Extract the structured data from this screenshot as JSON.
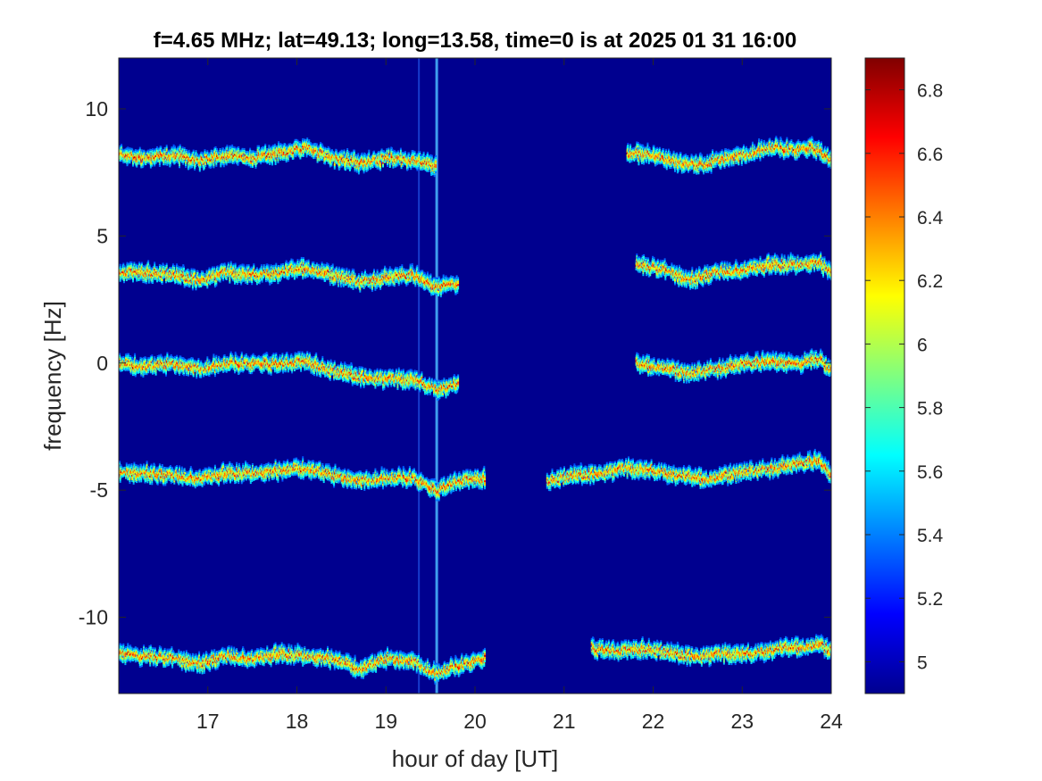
{
  "chart_data": {
    "type": "heatmap",
    "title": "f=4.65 MHz;  lat=49.13; long=13.58, time=0 is at 2025 01 31 16:00",
    "xlabel": "hour of day [UT]",
    "ylabel": "frequency [Hz]",
    "xlim": [
      16,
      24
    ],
    "ylim": [
      -13,
      12
    ],
    "x_ticks": [
      17,
      18,
      19,
      20,
      21,
      22,
      23,
      24
    ],
    "y_ticks": [
      -10,
      -5,
      0,
      5,
      10
    ],
    "grid": false,
    "colormap": "jet",
    "background_color": "#00008f",
    "colorbar": {
      "location": "right",
      "range": [
        4.9,
        6.9
      ],
      "ticks": [
        5,
        5.2,
        5.4,
        5.6,
        5.8,
        6,
        6.2,
        6.4,
        6.6,
        6.8
      ]
    },
    "traces": [
      {
        "x": [
          16.0,
          16.3,
          16.6,
          16.9,
          17.2,
          17.5,
          17.8,
          18.1,
          18.4,
          18.7,
          19.0,
          19.3,
          19.55
        ],
        "y": [
          8.2,
          8.1,
          8.2,
          8.0,
          8.2,
          8.1,
          8.3,
          8.5,
          8.1,
          7.9,
          8.1,
          8.0,
          7.8
        ]
      },
      {
        "x": [
          21.7,
          22.0,
          22.3,
          22.5,
          22.8,
          23.0,
          23.3,
          23.6,
          23.8,
          24.0
        ],
        "y": [
          8.3,
          8.2,
          7.9,
          7.8,
          8.1,
          8.2,
          8.5,
          8.4,
          8.5,
          8.0
        ]
      },
      {
        "x": [
          16.0,
          16.3,
          16.6,
          16.9,
          17.2,
          17.5,
          17.8,
          18.1,
          18.4,
          18.7,
          19.0,
          19.3,
          19.55,
          19.8
        ],
        "y": [
          3.6,
          3.6,
          3.5,
          3.3,
          3.6,
          3.5,
          3.6,
          3.8,
          3.5,
          3.2,
          3.4,
          3.5,
          3.0,
          3.2
        ]
      },
      {
        "x": [
          21.8,
          22.1,
          22.4,
          22.7,
          23.0,
          23.3,
          23.6,
          23.85,
          24.0
        ],
        "y": [
          3.9,
          3.7,
          3.3,
          3.6,
          3.7,
          3.9,
          3.9,
          4.0,
          3.6
        ]
      },
      {
        "x": [
          16.0,
          16.3,
          16.6,
          16.9,
          17.2,
          17.5,
          17.8,
          18.1,
          18.4,
          18.7,
          19.0,
          19.3,
          19.55,
          19.8
        ],
        "y": [
          0.0,
          -0.1,
          0.0,
          -0.2,
          0.0,
          0.0,
          0.0,
          0.1,
          -0.3,
          -0.5,
          -0.6,
          -0.6,
          -1.0,
          -0.8
        ]
      },
      {
        "x": [
          21.8,
          22.1,
          22.4,
          22.7,
          23.0,
          23.3,
          23.6,
          23.85,
          24.0
        ],
        "y": [
          0.0,
          -0.1,
          -0.4,
          -0.2,
          0.0,
          0.1,
          0.0,
          0.2,
          -0.3
        ]
      },
      {
        "x": [
          16.0,
          16.3,
          16.6,
          16.9,
          17.2,
          17.5,
          17.8,
          18.1,
          18.4,
          18.7,
          19.0,
          19.3,
          19.55,
          19.8,
          20.1
        ],
        "y": [
          -4.3,
          -4.3,
          -4.4,
          -4.5,
          -4.3,
          -4.3,
          -4.2,
          -4.1,
          -4.4,
          -4.6,
          -4.5,
          -4.5,
          -5.0,
          -4.6,
          -4.5
        ]
      },
      {
        "x": [
          20.8,
          21.1,
          21.4,
          21.7,
          22.0,
          22.3,
          22.6,
          22.9,
          23.2,
          23.5,
          23.85,
          24.0
        ],
        "y": [
          -4.6,
          -4.4,
          -4.3,
          -4.1,
          -4.2,
          -4.4,
          -4.5,
          -4.3,
          -4.2,
          -4.0,
          -3.8,
          -4.4
        ]
      },
      {
        "x": [
          16.0,
          16.3,
          16.6,
          16.9,
          17.2,
          17.5,
          17.8,
          18.1,
          18.4,
          18.7,
          19.0,
          19.3,
          19.55,
          19.8,
          20.1
        ],
        "y": [
          -11.4,
          -11.5,
          -11.6,
          -11.8,
          -11.5,
          -11.6,
          -11.4,
          -11.5,
          -11.6,
          -12.0,
          -11.6,
          -11.7,
          -12.2,
          -11.9,
          -11.6
        ]
      },
      {
        "x": [
          21.3,
          21.6,
          21.9,
          22.2,
          22.5,
          22.8,
          23.1,
          23.4,
          23.7,
          23.85,
          24.0
        ],
        "y": [
          -11.2,
          -11.3,
          -11.2,
          -11.4,
          -11.5,
          -11.4,
          -11.4,
          -11.2,
          -11.1,
          -11.0,
          -11.3
        ]
      }
    ],
    "vertical_streaks_x": [
      19.37,
      19.57
    ]
  }
}
